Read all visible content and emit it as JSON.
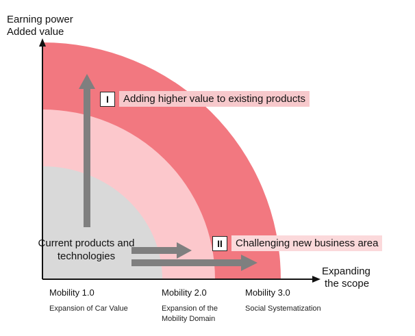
{
  "axes": {
    "y_title": [
      "Earning power",
      "Added value"
    ],
    "x_title": [
      "Expanding",
      "the scope"
    ]
  },
  "labels": {
    "item_i": {
      "numeral": "I",
      "text": "Adding higher value to existing products"
    },
    "item_ii": {
      "numeral": "II",
      "text": "Challenging new business area"
    },
    "current": [
      "Current products and",
      "technologies"
    ]
  },
  "mobility": [
    {
      "name": "Mobility 1.0",
      "desc": [
        "Expansion of Car Value"
      ]
    },
    {
      "name": "Mobility 2.0",
      "desc": [
        "Expansion of the",
        "Mobility Domain"
      ]
    },
    {
      "name": "Mobility 3.0",
      "desc": [
        "Social Systematization"
      ]
    }
  ],
  "colors": {
    "outer_band": "#f27880",
    "middle_band": "#fcc8cc",
    "inner_core": "#d9d9d9",
    "arrow": "#7f7f7f",
    "axis": "#111111"
  }
}
